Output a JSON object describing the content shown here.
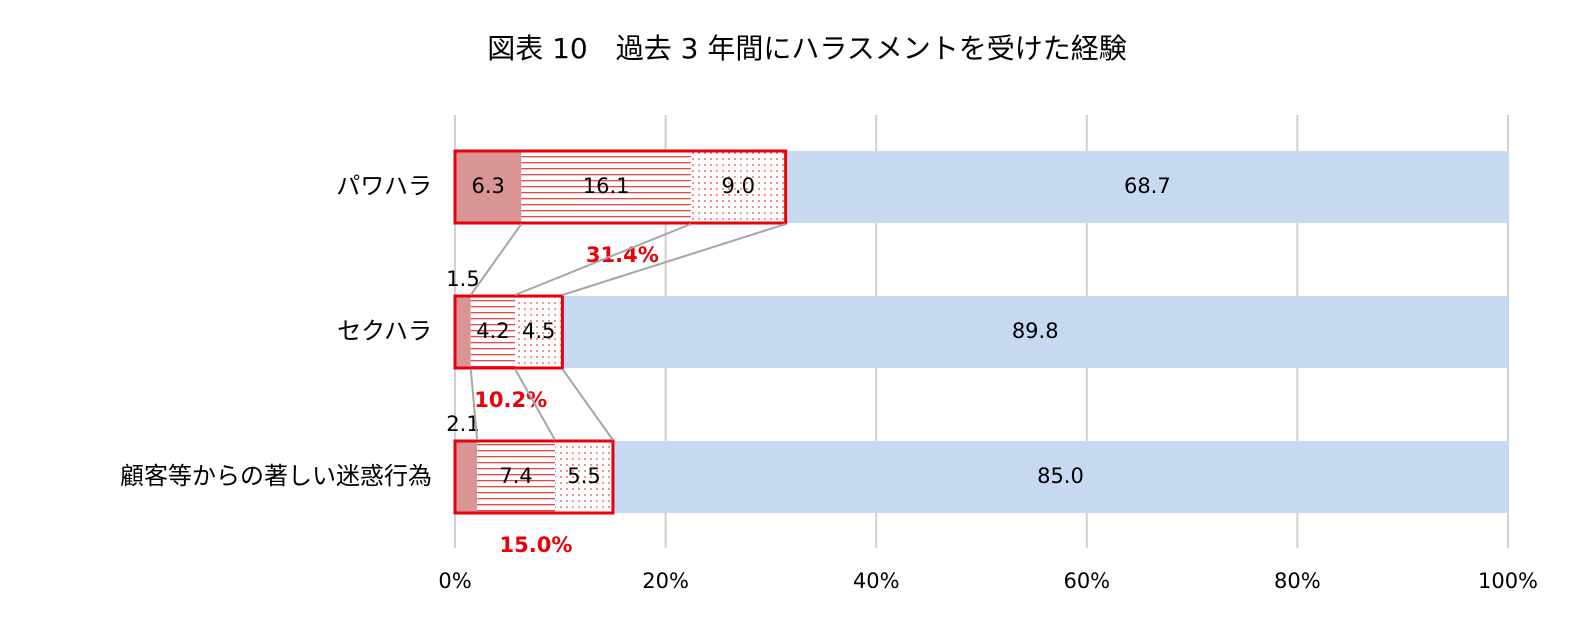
{
  "chart_data": {
    "type": "stacked-barh",
    "title": "図表 10　過去 3 年間にハラスメントを受けた経験",
    "categories": [
      "パワハラ",
      "セクハラ",
      "顧客等からの著しい迷惑行為"
    ],
    "series": [
      {
        "color": "#d99594",
        "pattern": "solid",
        "values": [
          6.3,
          1.5,
          2.1
        ]
      },
      {
        "color": "#e8474a",
        "pattern": "hlines",
        "values": [
          16.1,
          4.2,
          7.4
        ]
      },
      {
        "color": "#e8474a",
        "pattern": "dots",
        "values": [
          9,
          4.5,
          5.5
        ],
        "value_labels": [
          "9.0",
          "4.5",
          "5.5"
        ]
      },
      {
        "color": "#c6d9f0",
        "pattern": "solid",
        "values": [
          68.7,
          89.8,
          85
        ],
        "value_labels": [
          "68.7",
          "89.8",
          "85.0"
        ]
      }
    ],
    "annotations": [
      {
        "value": 31.4,
        "label": "31.4%"
      },
      {
        "value": 10.2,
        "label": "10.2%"
      },
      {
        "value": 15,
        "label": "15.0%"
      }
    ],
    "annotation_color": "#e8000b",
    "xlim": [
      0,
      100
    ],
    "xticks": [
      {
        "value": 0,
        "label": "0%"
      },
      {
        "value": 20,
        "label": "20%"
      },
      {
        "value": 40,
        "label": "40%"
      },
      {
        "value": 60,
        "label": "60%"
      },
      {
        "value": 80,
        "label": "80%"
      },
      {
        "value": 100,
        "label": "100%"
      }
    ],
    "grid": true
  }
}
